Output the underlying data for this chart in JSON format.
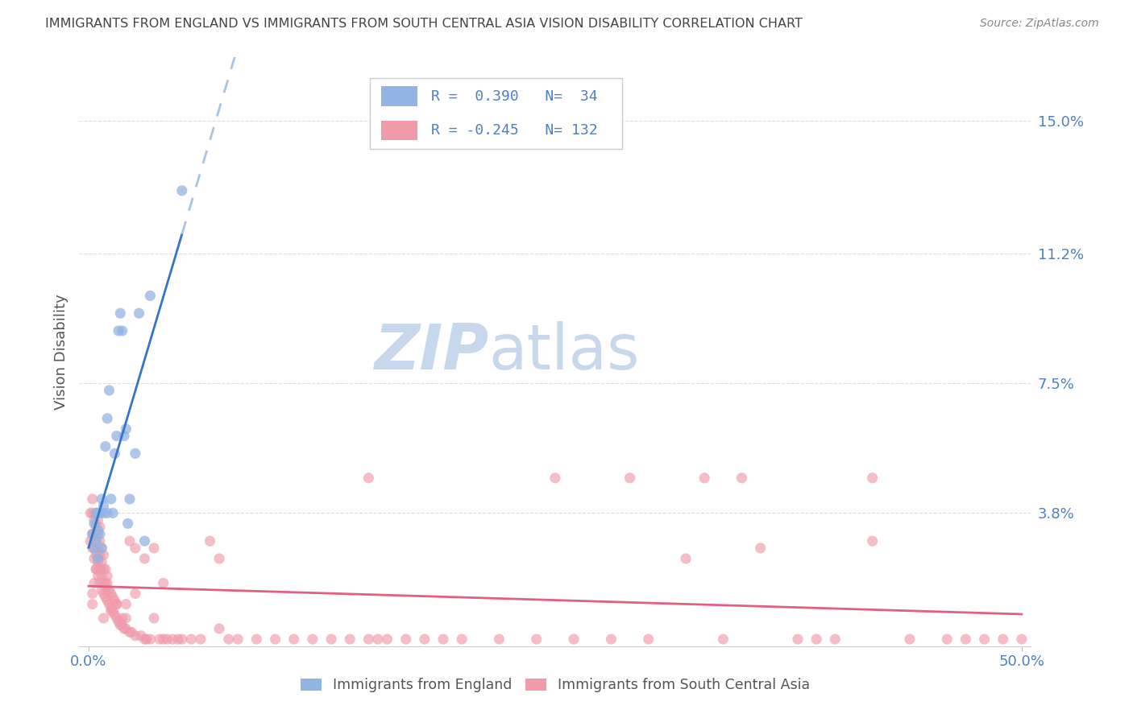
{
  "title": "IMMIGRANTS FROM ENGLAND VS IMMIGRANTS FROM SOUTH CENTRAL ASIA VISION DISABILITY CORRELATION CHART",
  "source": "Source: ZipAtlas.com",
  "ylabel": "Vision Disability",
  "ytick_labels": [
    "15.0%",
    "11.2%",
    "7.5%",
    "3.8%"
  ],
  "ytick_values": [
    0.15,
    0.112,
    0.075,
    0.038
  ],
  "xlim_min": 0.0,
  "xlim_max": 0.5,
  "ylim_min": 0.0,
  "ylim_max": 0.168,
  "legend_blue_r": "0.390",
  "legend_blue_n": "34",
  "legend_pink_r": "-0.245",
  "legend_pink_n": "132",
  "blue_color": "#92b4e3",
  "pink_color": "#f09aaa",
  "blue_line_color": "#3575c8",
  "pink_line_color": "#e06080",
  "dashed_line_color": "#a8c4e0",
  "watermark_zip_color": "#c8d8ec",
  "watermark_atlas_color": "#c8d8ec",
  "title_color": "#444444",
  "source_color": "#888888",
  "axis_label_color": "#5080c0",
  "ylabel_color": "#555555",
  "grid_color": "#dddddd",
  "legend_border_color": "#cccccc",
  "bottom_spine_color": "#cccccc",
  "blue_x": [
    0.002,
    0.003,
    0.003,
    0.004,
    0.004,
    0.005,
    0.005,
    0.005,
    0.006,
    0.006,
    0.007,
    0.007,
    0.008,
    0.008,
    0.009,
    0.01,
    0.01,
    0.011,
    0.012,
    0.013,
    0.014,
    0.015,
    0.016,
    0.017,
    0.018,
    0.019,
    0.02,
    0.021,
    0.022,
    0.025,
    0.027,
    0.03,
    0.033,
    0.05
  ],
  "blue_y": [
    0.032,
    0.028,
    0.035,
    0.03,
    0.038,
    0.025,
    0.033,
    0.038,
    0.032,
    0.038,
    0.028,
    0.042,
    0.04,
    0.038,
    0.057,
    0.065,
    0.038,
    0.073,
    0.042,
    0.038,
    0.055,
    0.06,
    0.09,
    0.095,
    0.09,
    0.06,
    0.062,
    0.035,
    0.042,
    0.055,
    0.095,
    0.03,
    0.1,
    0.13
  ],
  "blue_line_x0": 0.0,
  "blue_line_x_solid_end": 0.033,
  "blue_line_x1": 0.5,
  "blue_line_slope": 2.4,
  "blue_line_intercept": 0.025,
  "pink_line_slope": -0.02,
  "pink_line_intercept": 0.026,
  "pink_x": [
    0.001,
    0.001,
    0.002,
    0.002,
    0.002,
    0.002,
    0.003,
    0.003,
    0.003,
    0.003,
    0.004,
    0.004,
    0.004,
    0.004,
    0.004,
    0.005,
    0.005,
    0.005,
    0.005,
    0.005,
    0.006,
    0.006,
    0.006,
    0.006,
    0.006,
    0.007,
    0.007,
    0.007,
    0.007,
    0.008,
    0.008,
    0.008,
    0.008,
    0.009,
    0.009,
    0.009,
    0.01,
    0.01,
    0.01,
    0.011,
    0.011,
    0.012,
    0.012,
    0.013,
    0.013,
    0.014,
    0.014,
    0.015,
    0.015,
    0.016,
    0.017,
    0.018,
    0.019,
    0.02,
    0.02,
    0.022,
    0.022,
    0.023,
    0.025,
    0.025,
    0.028,
    0.03,
    0.03,
    0.031,
    0.033,
    0.035,
    0.038,
    0.04,
    0.042,
    0.045,
    0.048,
    0.05,
    0.055,
    0.06,
    0.065,
    0.07,
    0.075,
    0.08,
    0.09,
    0.1,
    0.11,
    0.12,
    0.13,
    0.14,
    0.15,
    0.155,
    0.16,
    0.17,
    0.18,
    0.19,
    0.2,
    0.22,
    0.24,
    0.26,
    0.28,
    0.3,
    0.32,
    0.34,
    0.36,
    0.38,
    0.39,
    0.4,
    0.42,
    0.44,
    0.46,
    0.47,
    0.48,
    0.49,
    0.5,
    0.35,
    0.15,
    0.25,
    0.42,
    0.33,
    0.29,
    0.07,
    0.04,
    0.035,
    0.02,
    0.025,
    0.018,
    0.015,
    0.01,
    0.012,
    0.008,
    0.006,
    0.004,
    0.003,
    0.002,
    0.002,
    0.003,
    0.005
  ],
  "pink_y": [
    0.03,
    0.038,
    0.028,
    0.032,
    0.038,
    0.042,
    0.025,
    0.028,
    0.032,
    0.036,
    0.022,
    0.026,
    0.03,
    0.034,
    0.038,
    0.02,
    0.024,
    0.028,
    0.032,
    0.036,
    0.018,
    0.022,
    0.026,
    0.03,
    0.034,
    0.016,
    0.02,
    0.024,
    0.028,
    0.015,
    0.018,
    0.022,
    0.026,
    0.014,
    0.018,
    0.022,
    0.013,
    0.016,
    0.02,
    0.012,
    0.016,
    0.011,
    0.015,
    0.01,
    0.014,
    0.009,
    0.013,
    0.008,
    0.012,
    0.007,
    0.006,
    0.006,
    0.005,
    0.005,
    0.008,
    0.004,
    0.03,
    0.004,
    0.003,
    0.028,
    0.003,
    0.002,
    0.025,
    0.002,
    0.002,
    0.028,
    0.002,
    0.002,
    0.002,
    0.002,
    0.002,
    0.002,
    0.002,
    0.002,
    0.03,
    0.025,
    0.002,
    0.002,
    0.002,
    0.002,
    0.002,
    0.002,
    0.002,
    0.002,
    0.002,
    0.002,
    0.002,
    0.002,
    0.002,
    0.002,
    0.002,
    0.002,
    0.002,
    0.002,
    0.002,
    0.002,
    0.025,
    0.002,
    0.028,
    0.002,
    0.002,
    0.002,
    0.03,
    0.002,
    0.002,
    0.002,
    0.002,
    0.002,
    0.002,
    0.048,
    0.048,
    0.048,
    0.048,
    0.048,
    0.048,
    0.005,
    0.018,
    0.008,
    0.012,
    0.015,
    0.008,
    0.012,
    0.018,
    0.01,
    0.008,
    0.022,
    0.022,
    0.018,
    0.012,
    0.015,
    0.03,
    0.025
  ]
}
